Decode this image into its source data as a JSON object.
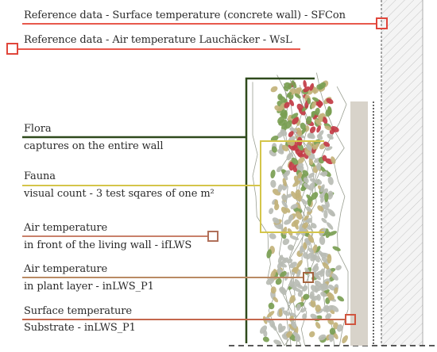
{
  "annotations": {
    "reference_surface": "Reference data - Surface temperature (concrete wall) - SFCon",
    "reference_air": "Reference data - Air temperature Lauchäcker - WsL",
    "flora_title": "Flora",
    "flora_desc": "captures on the entire wall",
    "fauna_title": "Fauna",
    "fauna_desc": "visual count - 3 test sqares of one m²",
    "air_front_title": "Air temperature",
    "air_front_desc": "in front of the living wall - ifLWS",
    "air_plant_title": "Air temperature",
    "air_plant_desc": "in plant layer - inLWS_P1",
    "surface_title": "Surface temperature",
    "surface_desc": "Substrate - inLWS_P1"
  },
  "colors": {
    "reference_line": "#e8584c",
    "reference_marker": "#e0463b",
    "flora_line": "#2f4a1c",
    "fauna_line": "#d4c54a",
    "air_front_line": "#c9806a",
    "air_front_marker": "#b0705a",
    "air_plant_line": "#b98a63",
    "air_plant_marker": "#a5643f",
    "surface_line": "#c4674c",
    "surface_marker": "#d0553f",
    "substrate_panel": "#d8d3ca",
    "concrete_wall": "#f3f3f3",
    "leaf_red": "#c23b45",
    "leaf_green": "#7a9e52",
    "leaf_gray": "#b8bcb4",
    "leaf_khaki": "#c2b27a"
  }
}
